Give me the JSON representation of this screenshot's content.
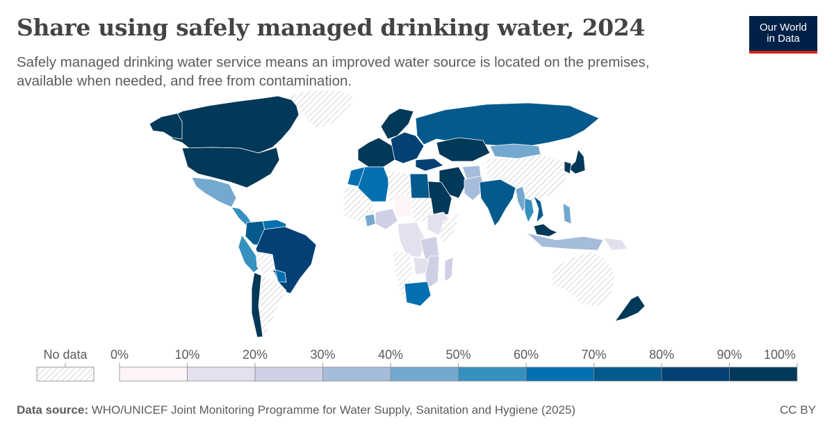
{
  "header": {
    "title": "Share using safely managed drinking water, 2024",
    "subtitle": "Safely managed drinking water service means an improved water source is located on the premises, available when needed, and free from contamination.",
    "logo_line1": "Our World",
    "logo_line2": "in Data"
  },
  "legend": {
    "no_data_label": "No data",
    "tick_labels": [
      "0%",
      "10%",
      "20%",
      "30%",
      "40%",
      "50%",
      "60%",
      "70%",
      "80%",
      "90%",
      "100%"
    ],
    "bin_colors": [
      "#fcf4f8",
      "#e4e1ef",
      "#cfd0e3",
      "#a6bcdb",
      "#74a9cf",
      "#3690c0",
      "#0570b0",
      "#045a8d",
      "#034175",
      "#023858"
    ]
  },
  "chart_data": {
    "type": "choropleth",
    "metric": "Share using safely managed drinking water",
    "year": 2024,
    "units": "%",
    "scale": {
      "min": 0,
      "max": 100,
      "bin_width": 10
    },
    "regions": [
      {
        "name": "Canada",
        "value": 99
      },
      {
        "name": "United States",
        "value": 97
      },
      {
        "name": "Alaska",
        "value": 97
      },
      {
        "name": "Greenland",
        "value": null
      },
      {
        "name": "Mexico",
        "value": 43
      },
      {
        "name": "Central America",
        "value": 55
      },
      {
        "name": "Venezuela",
        "value": 62
      },
      {
        "name": "Colombia",
        "value": 73
      },
      {
        "name": "Peru",
        "value": 51
      },
      {
        "name": "Brazil",
        "value": 88
      },
      {
        "name": "Bolivia",
        "value": null
      },
      {
        "name": "Paraguay",
        "value": 65
      },
      {
        "name": "Argentina",
        "value": null
      },
      {
        "name": "Chile",
        "value": 98
      },
      {
        "name": "Western Europe",
        "value": 98
      },
      {
        "name": "Eastern Europe",
        "value": 88
      },
      {
        "name": "Scandinavia",
        "value": 98
      },
      {
        "name": "Russia",
        "value": 77
      },
      {
        "name": "Kazakhstan",
        "value": 92
      },
      {
        "name": "Mongolia",
        "value": 45
      },
      {
        "name": "China",
        "value": null
      },
      {
        "name": "Japan",
        "value": 98
      },
      {
        "name": "Korea",
        "value": 99
      },
      {
        "name": "Turkey",
        "value": 85
      },
      {
        "name": "Iran",
        "value": 90
      },
      {
        "name": "Saudi Arabia",
        "value": 98
      },
      {
        "name": "Afghanistan",
        "value": 30
      },
      {
        "name": "Pakistan",
        "value": 37
      },
      {
        "name": "India",
        "value": 70
      },
      {
        "name": "Myanmar",
        "value": 42
      },
      {
        "name": "Thailand",
        "value": 54
      },
      {
        "name": "Vietnam",
        "value": 75
      },
      {
        "name": "Malaysia",
        "value": 95
      },
      {
        "name": "Indonesia",
        "value": 33
      },
      {
        "name": "Philippines",
        "value": 48
      },
      {
        "name": "Papua New Guinea",
        "value": 18
      },
      {
        "name": "Australia",
        "value": null
      },
      {
        "name": "New Zealand",
        "value": 97
      },
      {
        "name": "Morocco",
        "value": 62
      },
      {
        "name": "Algeria",
        "value": 65
      },
      {
        "name": "Libya",
        "value": null
      },
      {
        "name": "Egypt",
        "value": 72
      },
      {
        "name": "West Africa",
        "value": null
      },
      {
        "name": "Nigeria",
        "value": 28
      },
      {
        "name": "Ghana",
        "value": 45
      },
      {
        "name": "Chad",
        "value": 6
      },
      {
        "name": "Sudan",
        "value": null
      },
      {
        "name": "Ethiopia",
        "value": 12
      },
      {
        "name": "Somalia",
        "value": null
      },
      {
        "name": "DR Congo",
        "value": 19
      },
      {
        "name": "Angola",
        "value": null
      },
      {
        "name": "Tanzania",
        "value": 28
      },
      {
        "name": "Zambia",
        "value": 15
      },
      {
        "name": "Mozambique",
        "value": 24
      },
      {
        "name": "Madagascar",
        "value": 29
      },
      {
        "name": "Namibia",
        "value": null
      },
      {
        "name": "South Africa",
        "value": 66
      }
    ]
  },
  "footer": {
    "source_label": "Data source:",
    "source_text": "WHO/UNICEF Joint Monitoring Programme for Water Supply, Sanitation and Hygiene (2025)",
    "license": "CC BY"
  }
}
